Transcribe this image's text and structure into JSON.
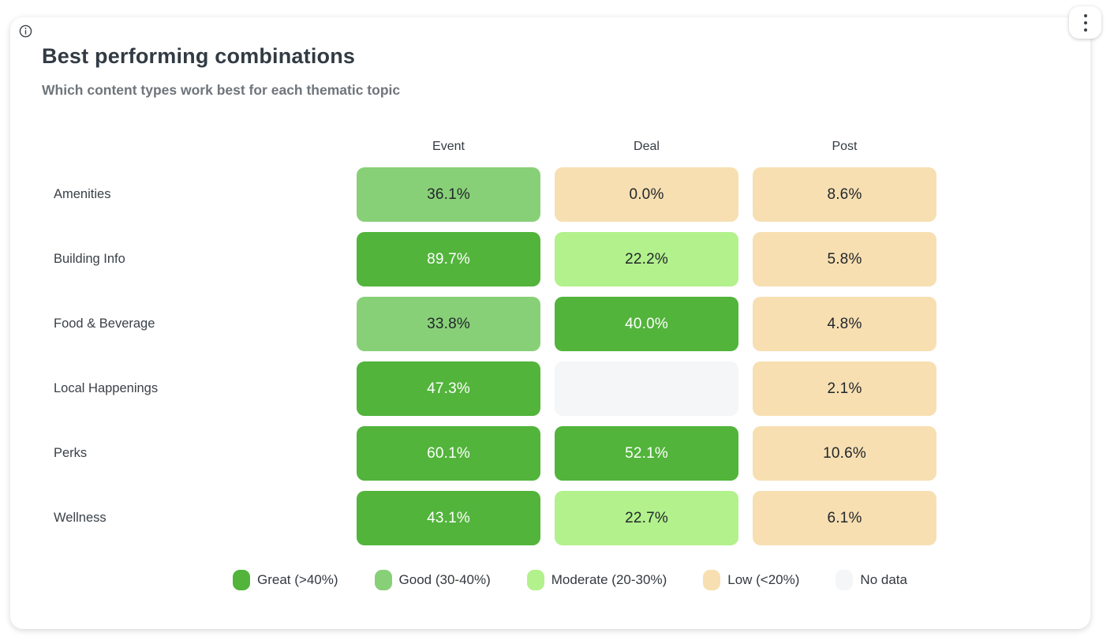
{
  "header": {
    "title": "Best performing combinations",
    "subtitle": "Which content types work best for each thematic topic"
  },
  "icons": {
    "info": "info-icon",
    "menu": "kebab-menu-icon"
  },
  "colors": {
    "great": "#52b43b",
    "good": "#88d078",
    "moderate": "#b2f18c",
    "low": "#f7dfb2",
    "no_data": "#f5f6f8",
    "cell_text_dark": "#22272b",
    "cell_text_light": "#ffffff",
    "card_background": "#ffffff"
  },
  "chart_data": {
    "type": "heatmap",
    "title": "Best performing combinations",
    "subtitle": "Which content types work best for each thematic topic",
    "columns": [
      "Event",
      "Deal",
      "Post"
    ],
    "rows": [
      "Amenities",
      "Building Info",
      "Food & Beverage",
      "Local Happenings",
      "Perks",
      "Wellness"
    ],
    "values": [
      [
        36.1,
        0.0,
        8.6
      ],
      [
        89.7,
        22.2,
        5.8
      ],
      [
        33.8,
        40.0,
        4.8
      ],
      [
        47.3,
        null,
        2.1
      ],
      [
        60.1,
        52.1,
        10.6
      ],
      [
        43.1,
        22.7,
        6.1
      ]
    ],
    "value_suffix": "%",
    "thresholds": {
      "great_min": 40,
      "good_min": 30,
      "moderate_min": 20
    },
    "legend_position": "bottom",
    "legend": [
      {
        "label": "Great (>40%)",
        "category": "great"
      },
      {
        "label": "Good (30-40%)",
        "category": "good"
      },
      {
        "label": "Moderate (20-30%)",
        "category": "moderate"
      },
      {
        "label": "Low (<20%)",
        "category": "low"
      },
      {
        "label": "No data",
        "category": "no_data"
      }
    ]
  }
}
